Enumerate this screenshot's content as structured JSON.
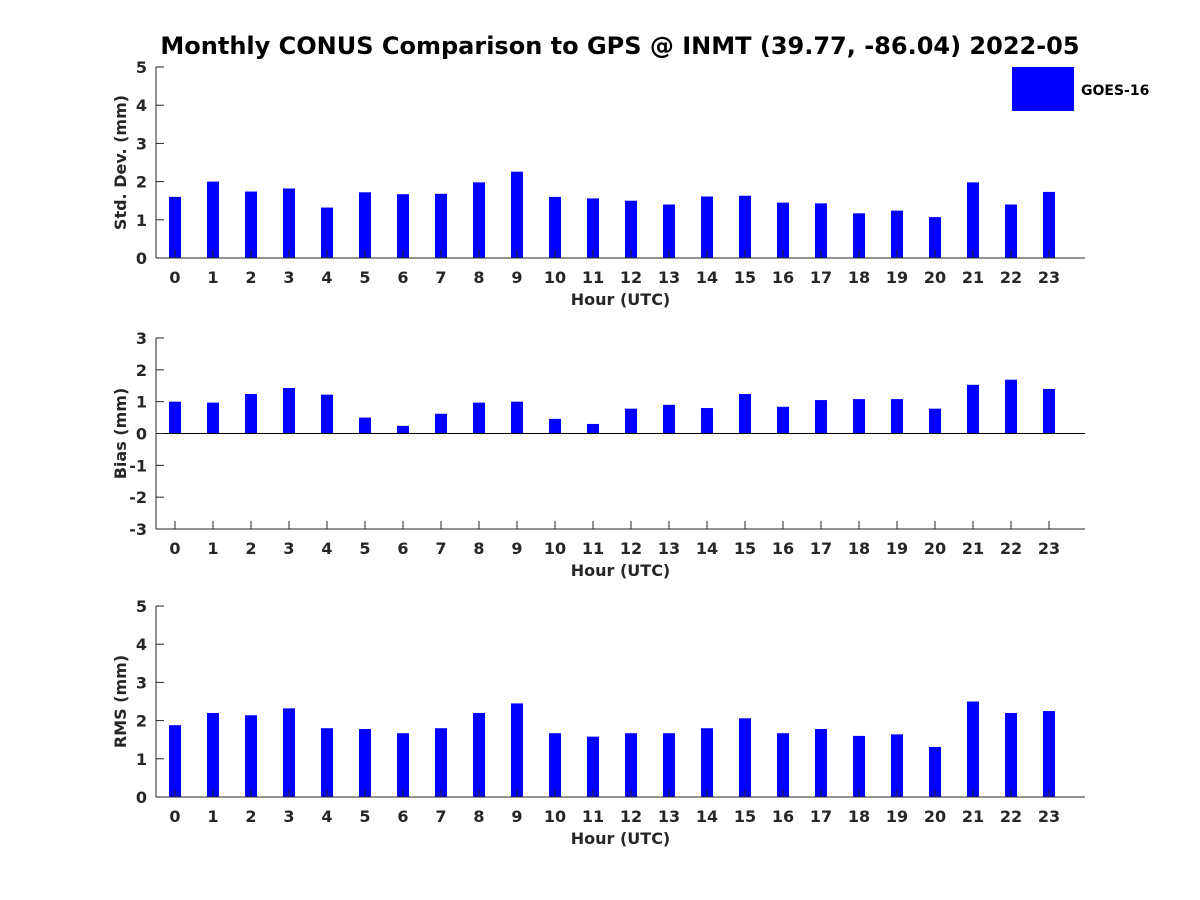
{
  "title": "Monthly CONUS Comparison to GPS @ INMT (39.77, -86.04) 2022-05",
  "legend": {
    "label": "GOES-16",
    "color": "#0000ff",
    "placement": "top-right"
  },
  "chart_data": [
    {
      "type": "bar",
      "xlabel": "Hour (UTC)",
      "ylabel": "Std. Dev. (mm)",
      "categories": [
        "0",
        "1",
        "2",
        "3",
        "4",
        "5",
        "6",
        "7",
        "8",
        "9",
        "10",
        "11",
        "12",
        "13",
        "14",
        "15",
        "16",
        "17",
        "18",
        "19",
        "20",
        "21",
        "22",
        "23"
      ],
      "series": [
        {
          "name": "GOES-16",
          "values": [
            1.6,
            2.0,
            1.74,
            1.82,
            1.32,
            1.72,
            1.67,
            1.68,
            1.98,
            2.26,
            1.6,
            1.56,
            1.5,
            1.4,
            1.61,
            1.63,
            1.45,
            1.43,
            1.17,
            1.24,
            1.07,
            1.98,
            1.4,
            1.73
          ]
        }
      ],
      "ylim": [
        0,
        5
      ],
      "yticks": [
        "0",
        "1",
        "2",
        "3",
        "4",
        "5"
      ],
      "grid": false
    },
    {
      "type": "bar",
      "xlabel": "Hour (UTC)",
      "ylabel": "Bias (mm)",
      "categories": [
        "0",
        "1",
        "2",
        "3",
        "4",
        "5",
        "6",
        "7",
        "8",
        "9",
        "10",
        "11",
        "12",
        "13",
        "14",
        "15",
        "16",
        "17",
        "18",
        "19",
        "20",
        "21",
        "22",
        "23"
      ],
      "series": [
        {
          "name": "GOES-16",
          "values": [
            1.0,
            0.97,
            1.24,
            1.43,
            1.22,
            0.5,
            0.24,
            0.62,
            0.97,
            1.0,
            0.46,
            0.3,
            0.78,
            0.9,
            0.8,
            1.24,
            0.84,
            1.05,
            1.08,
            1.08,
            0.78,
            1.53,
            1.69,
            1.4
          ]
        }
      ],
      "ylim": [
        -3,
        3
      ],
      "yticks": [
        "-3",
        "-2",
        "-1",
        "0",
        "1",
        "2",
        "3"
      ],
      "grid": false
    },
    {
      "type": "bar",
      "xlabel": "Hour (UTC)",
      "ylabel": "RMS (mm)",
      "categories": [
        "0",
        "1",
        "2",
        "3",
        "4",
        "5",
        "6",
        "7",
        "8",
        "9",
        "10",
        "11",
        "12",
        "13",
        "14",
        "15",
        "16",
        "17",
        "18",
        "19",
        "20",
        "21",
        "22",
        "23"
      ],
      "series": [
        {
          "name": "GOES-16",
          "values": [
            1.88,
            2.2,
            2.14,
            2.32,
            1.8,
            1.78,
            1.67,
            1.8,
            2.2,
            2.45,
            1.67,
            1.58,
            1.67,
            1.67,
            1.8,
            2.06,
            1.67,
            1.78,
            1.6,
            1.64,
            1.31,
            2.5,
            2.2,
            2.25
          ]
        }
      ],
      "ylim": [
        0,
        5
      ],
      "yticks": [
        "0",
        "1",
        "2",
        "3",
        "4",
        "5"
      ],
      "grid": false
    }
  ]
}
